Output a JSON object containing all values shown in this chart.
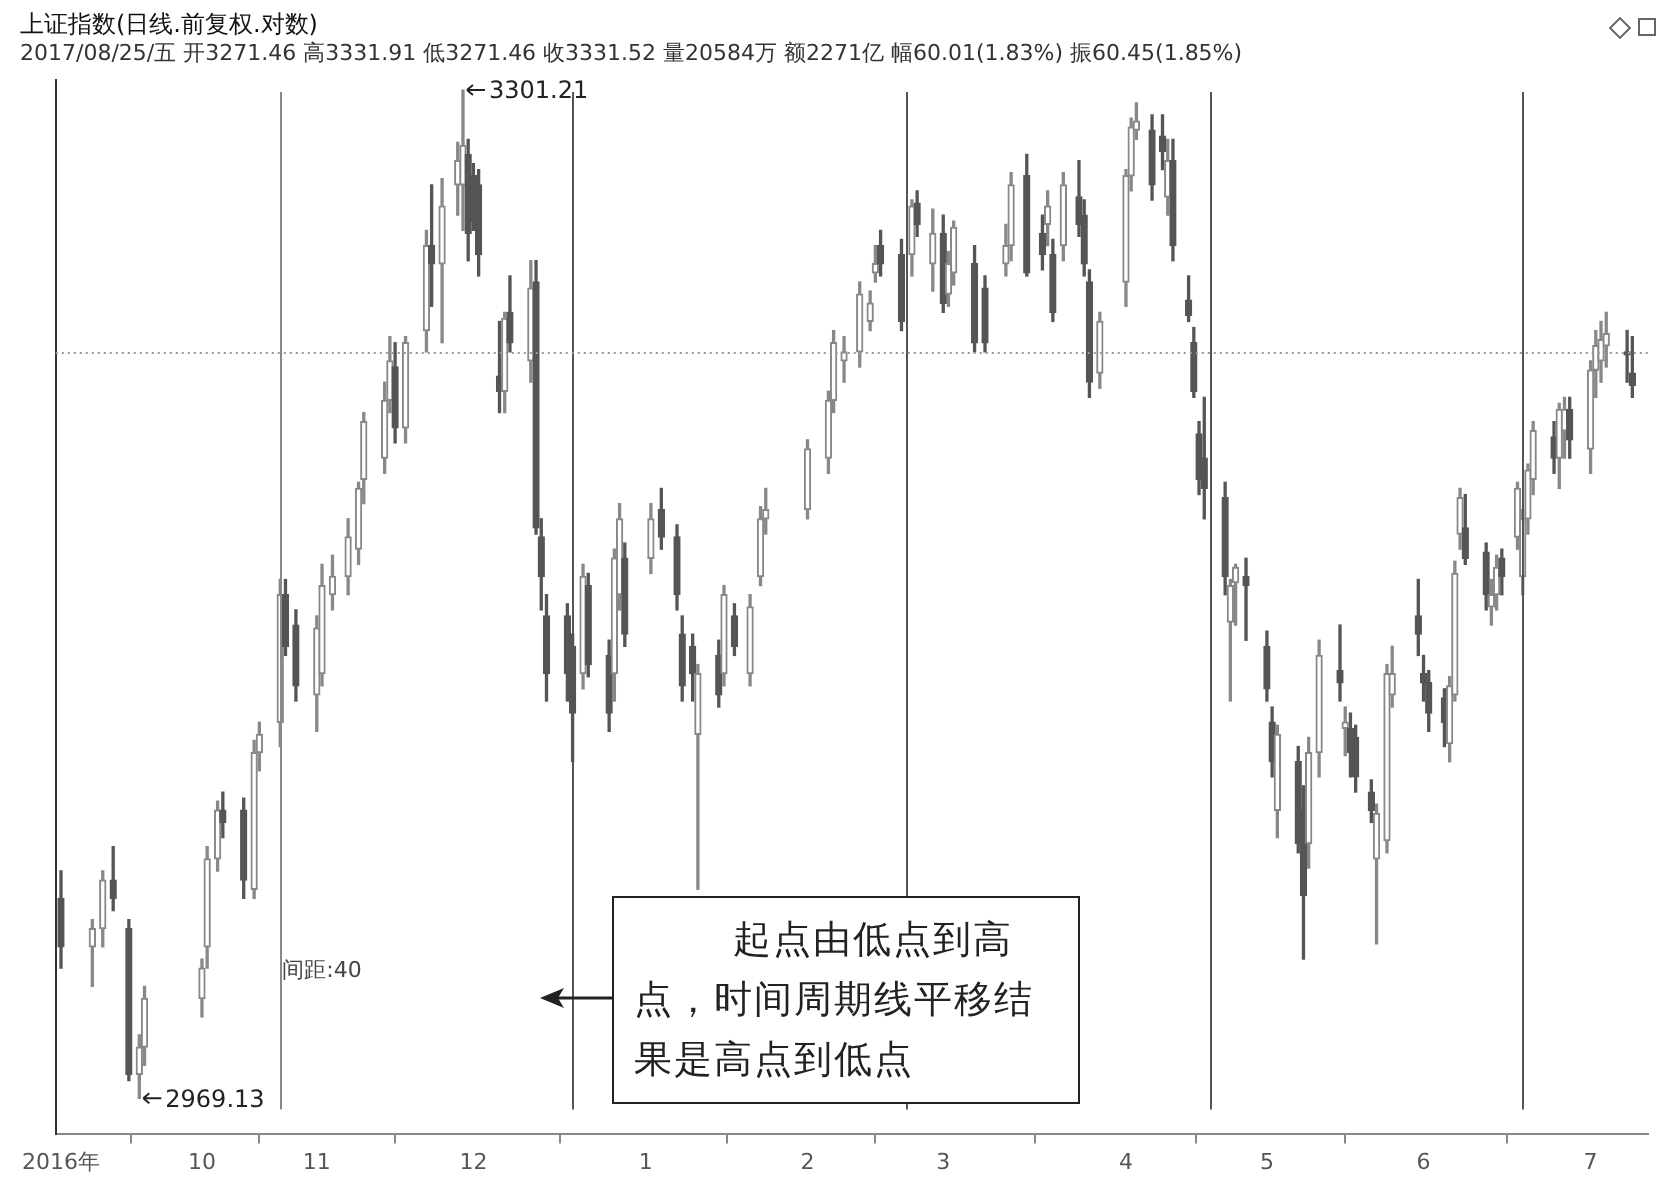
{
  "chart_data": {
    "type": "candlestick",
    "title": "上证指数(日线.前复权.对数)",
    "subtitle": "2017/08/25/五 开3271.46 高3331.91 低3271.46 收3331.52 量20584万 额2271亿 幅60.01(1.83%) 振60.45(1.85%)",
    "colors": [
      "#555555",
      "#888888",
      "#888888",
      "#555555",
      "#555555",
      "#888888",
      "#888888",
      "#888888",
      "#888888",
      "#888888",
      "#555555",
      "#555555",
      "#888888",
      "#888888",
      "#888888",
      "#555555",
      "#555555",
      "#888888",
      "#888888",
      "#888888",
      "#888888",
      "#888888",
      "#888888",
      "#888888",
      "#888888",
      "#555555",
      "#888888",
      "#888888",
      "#555555",
      "#888888",
      "#888888",
      "#888888",
      "#555555",
      "#555555",
      "#555555",
      "#555555",
      "#888888",
      "#555555",
      "#888888",
      "#555555",
      "#555555",
      "#555555",
      "#555555",
      "#555555",
      "#888888",
      "#555555",
      "#555555",
      "#888888",
      "#888888",
      "#555555",
      "#888888",
      "#555555",
      "#555555",
      "#555555",
      "#555555",
      "#888888",
      "#555555",
      "#888888",
      "#555555",
      "#888888",
      "#888888",
      "#888888",
      "#888888",
      "#888888",
      "#888888",
      "#888888",
      "#888888",
      "#888888",
      "#888888",
      "#555555",
      "#555555",
      "#888888",
      "#555555",
      "#888888",
      "#555555",
      "#888888",
      "#888888",
      "#555555",
      "#555555",
      "#888888",
      "#888888",
      "#555555",
      "#555555",
      "#888888",
      "#555555",
      "#888888",
      "#555555",
      "#555555",
      "#555555",
      "#888888",
      "#888888",
      "#888888",
      "#888888",
      "#555555",
      "#555555",
      "#888888",
      "#555555",
      "#555555",
      "#555555",
      "#555555",
      "#555555",
      "#555555",
      "#888888",
      "#888888",
      "#555555",
      "#555555",
      "#555555",
      "#888888",
      "#555555",
      "#555555",
      "#888888",
      "#888888",
      "#555555",
      "#888888",
      "#555555",
      "#555555",
      "#555555",
      "#888888",
      "#888888",
      "#888888",
      "#555555",
      "#555555",
      "#555555",
      "#555555",
      "#888888",
      "#888888",
      "#888888",
      "#555555",
      "#555555",
      "#888888",
      "#888888",
      "#555555",
      "#888888",
      "#888888",
      "#888888",
      "#888888",
      "#555555",
      "#888888",
      "#888888",
      "#555555",
      "#888888",
      "#888888",
      "#888888",
      "#888888",
      "#555555",
      "#555555"
    ],
    "x": [
      "2016-09-13",
      "2016-09-19",
      "2016-09-21",
      "2016-09-23",
      "2016-09-26",
      "2016-09-28",
      "2016-09-29",
      "2016-10-10",
      "2016-10-11",
      "2016-10-13",
      "2016-10-14",
      "2016-10-18",
      "2016-10-20",
      "2016-10-21",
      "2016-10-25",
      "2016-10-26",
      "2016-10-28",
      "2016-11-01",
      "2016-11-02",
      "2016-11-04",
      "2016-11-07",
      "2016-11-09",
      "2016-11-10",
      "2016-11-14",
      "2016-11-15",
      "2016-11-16",
      "2016-11-18",
      "2016-11-22",
      "2016-11-23",
      "2016-11-25",
      "2016-11-28",
      "2016-11-29",
      "2016-11-30",
      "2016-12-01",
      "2016-12-02",
      "2016-12-06",
      "2016-12-07",
      "2016-12-08",
      "2016-12-12",
      "2016-12-13",
      "2016-12-14",
      "2016-12-15",
      "2016-12-19",
      "2016-12-20",
      "2016-12-22",
      "2016-12-23",
      "2016-12-27",
      "2016-12-28",
      "2016-12-29",
      "2016-12-30",
      "2017-01-04",
      "2017-01-06",
      "2017-01-09",
      "2017-01-10",
      "2017-01-12",
      "2017-01-13",
      "2017-01-17",
      "2017-01-18",
      "2017-01-20",
      "2017-01-23",
      "2017-01-25",
      "2017-01-26",
      "2017-02-03",
      "2017-02-07",
      "2017-02-08",
      "2017-02-10",
      "2017-02-13",
      "2017-02-15",
      "2017-02-16",
      "2017-02-17",
      "2017-02-21",
      "2017-02-23",
      "2017-02-24",
      "2017-02-27",
      "2017-03-01",
      "2017-03-02",
      "2017-03-03",
      "2017-03-07",
      "2017-03-09",
      "2017-03-13",
      "2017-03-14",
      "2017-03-17",
      "2017-03-20",
      "2017-03-21",
      "2017-03-22",
      "2017-03-24",
      "2017-03-27",
      "2017-03-28",
      "2017-03-29",
      "2017-03-31",
      "2017-04-05",
      "2017-04-06",
      "2017-04-07",
      "2017-04-10",
      "2017-04-12",
      "2017-04-13",
      "2017-04-14",
      "2017-04-17",
      "2017-04-18",
      "2017-04-19",
      "2017-04-20",
      "2017-04-24",
      "2017-04-25",
      "2017-04-26",
      "2017-04-28",
      "2017-05-02",
      "2017-05-03",
      "2017-05-04",
      "2017-05-08",
      "2017-05-09",
      "2017-05-10",
      "2017-05-12",
      "2017-05-16",
      "2017-05-17",
      "2017-05-18",
      "2017-05-19",
      "2017-05-22",
      "2017-05-23",
      "2017-05-25",
      "2017-05-26",
      "2017-05-31",
      "2017-06-01",
      "2017-06-02",
      "2017-06-05",
      "2017-06-06",
      "2017-06-07",
      "2017-06-08",
      "2017-06-09",
      "2017-06-13",
      "2017-06-14",
      "2017-06-15",
      "2017-06-16",
      "2017-06-19",
      "2017-06-20",
      "2017-06-21",
      "2017-06-22",
      "2017-06-26",
      "2017-06-27",
      "2017-06-28",
      "2017-06-29",
      "2017-07-03",
      "2017-07-04",
      "2017-07-05",
      "2017-07-06",
      "2017-07-10",
      "2017-07-11"
    ],
    "ohlc": [
      [
        3035,
        3044,
        3012,
        3019
      ],
      [
        3019,
        3028,
        3006,
        3025
      ],
      [
        3025,
        3044,
        3019,
        3041
      ],
      [
        3041,
        3052,
        3031,
        3035
      ],
      [
        3025,
        3028,
        2975,
        2977
      ],
      [
        2977,
        2990,
        2969.13,
        2986
      ],
      [
        2986,
        3006,
        2980,
        3002
      ],
      [
        3002,
        3015,
        2996,
        3012
      ],
      [
        3019,
        3052,
        3012,
        3048
      ],
      [
        3048,
        3067,
        3044,
        3064
      ],
      [
        3064,
        3070,
        3055,
        3060
      ],
      [
        3064,
        3068,
        3035,
        3041
      ],
      [
        3038,
        3087,
        3035,
        3083
      ],
      [
        3083,
        3093,
        3077,
        3089
      ],
      [
        3093,
        3140,
        3085,
        3135
      ],
      [
        3135,
        3140,
        3115,
        3118
      ],
      [
        3125,
        3130,
        3100,
        3105
      ],
      [
        3102,
        3128,
        3090,
        3124
      ],
      [
        3109,
        3145,
        3105,
        3138
      ],
      [
        3135,
        3148,
        3130,
        3141
      ],
      [
        3141,
        3160,
        3135,
        3154
      ],
      [
        3150,
        3172,
        3145,
        3170
      ],
      [
        3173,
        3195,
        3165,
        3192
      ],
      [
        3180,
        3205,
        3175,
        3199
      ],
      [
        3199,
        3220,
        3195,
        3212
      ],
      [
        3210,
        3218,
        3185,
        3190
      ],
      [
        3190,
        3220,
        3185,
        3218
      ],
      [
        3222,
        3255,
        3215,
        3250
      ],
      [
        3250,
        3270,
        3230,
        3244
      ],
      [
        3244,
        3272,
        3218,
        3263
      ],
      [
        3270,
        3284,
        3260,
        3278
      ],
      [
        3270,
        3301.21,
        3255,
        3283
      ],
      [
        3280,
        3285,
        3245,
        3254
      ],
      [
        3273,
        3277,
        3255,
        3258
      ],
      [
        3270,
        3275,
        3240,
        3247
      ],
      [
        3207,
        3225,
        3195,
        3202
      ],
      [
        3202,
        3228,
        3195,
        3226
      ],
      [
        3228,
        3240,
        3215,
        3218
      ],
      [
        3212,
        3245,
        3205,
        3236
      ],
      [
        3238,
        3245,
        3155,
        3157
      ],
      [
        3154,
        3160,
        3130,
        3141
      ],
      [
        3128,
        3135,
        3100,
        3109
      ],
      [
        3128,
        3132,
        3100,
        3109
      ],
      [
        3118,
        3122,
        3080,
        3096
      ],
      [
        3109,
        3145,
        3104,
        3141
      ],
      [
        3138,
        3142,
        3108,
        3112
      ],
      [
        3115,
        3120,
        3090,
        3096
      ],
      [
        3109,
        3150,
        3100,
        3147
      ],
      [
        3135,
        3165,
        3130,
        3160
      ],
      [
        3147,
        3152,
        3118,
        3122
      ],
      [
        3147,
        3165,
        3142,
        3160
      ],
      [
        3163,
        3170,
        3150,
        3154
      ],
      [
        3154,
        3158,
        3130,
        3135
      ],
      [
        3122,
        3128,
        3100,
        3105
      ],
      [
        3118,
        3122,
        3100,
        3109
      ],
      [
        3089,
        3112,
        3038,
        3109
      ],
      [
        3115,
        3120,
        3098,
        3102
      ],
      [
        3109,
        3138,
        3105,
        3135
      ],
      [
        3128,
        3132,
        3115,
        3118
      ],
      [
        3109,
        3135,
        3105,
        3131
      ],
      [
        3141,
        3164,
        3138,
        3160
      ],
      [
        3160,
        3170,
        3155,
        3163
      ],
      [
        3163,
        3186,
        3160,
        3183
      ],
      [
        3180,
        3202,
        3175,
        3199
      ],
      [
        3199,
        3222,
        3195,
        3218
      ],
      [
        3212,
        3220,
        3205,
        3215
      ],
      [
        3215,
        3238,
        3210,
        3234
      ],
      [
        3225,
        3235,
        3222,
        3231
      ],
      [
        3241,
        3250,
        3238,
        3244
      ],
      [
        3250,
        3255,
        3240,
        3244
      ],
      [
        3247,
        3252,
        3222,
        3225
      ],
      [
        3247,
        3265,
        3240,
        3263
      ],
      [
        3264,
        3268,
        3253,
        3257
      ],
      [
        3244,
        3262,
        3235,
        3254
      ],
      [
        3254,
        3260,
        3228,
        3231
      ],
      [
        3234,
        3248,
        3230,
        3244
      ],
      [
        3241,
        3258,
        3237,
        3256
      ],
      [
        3244,
        3250,
        3215,
        3218
      ],
      [
        3236,
        3240,
        3215,
        3218
      ],
      [
        3244,
        3257,
        3240,
        3250
      ],
      [
        3250,
        3274,
        3245,
        3270
      ],
      [
        3273,
        3280,
        3240,
        3241
      ],
      [
        3254,
        3260,
        3242,
        3247
      ],
      [
        3257,
        3268,
        3250,
        3263
      ],
      [
        3247,
        3252,
        3225,
        3228
      ],
      [
        3250,
        3274,
        3245,
        3270
      ],
      [
        3266,
        3278,
        3253,
        3257
      ],
      [
        3260,
        3265,
        3240,
        3244
      ],
      [
        3238,
        3242,
        3200,
        3205
      ],
      [
        3208,
        3228,
        3203,
        3225
      ],
      [
        3238,
        3275,
        3230,
        3273
      ],
      [
        3273,
        3292,
        3268,
        3289
      ],
      [
        3288,
        3297,
        3285,
        3291
      ],
      [
        3288,
        3293,
        3265,
        3270
      ],
      [
        3286,
        3293,
        3275,
        3281
      ],
      [
        3266,
        3285,
        3260,
        3278
      ],
      [
        3278,
        3285,
        3245,
        3250
      ],
      [
        3232,
        3240,
        3225,
        3227
      ],
      [
        3218,
        3223,
        3200,
        3202
      ],
      [
        3188,
        3192,
        3168,
        3173
      ],
      [
        3180,
        3200,
        3160,
        3170
      ],
      [
        3167,
        3172,
        3135,
        3141
      ],
      [
        3126,
        3140,
        3100,
        3138
      ],
      [
        3139,
        3145,
        3125,
        3144
      ],
      [
        3141,
        3147,
        3120,
        3138
      ],
      [
        3118,
        3123,
        3100,
        3104
      ],
      [
        3093,
        3098,
        3075,
        3080
      ],
      [
        3064,
        3092,
        3055,
        3089
      ],
      [
        3080,
        3085,
        3050,
        3053
      ],
      [
        3064,
        3072,
        3015,
        3036
      ],
      [
        3053,
        3088,
        3045,
        3083
      ],
      [
        3083,
        3120,
        3075,
        3115
      ],
      [
        3110,
        3125,
        3100,
        3106
      ],
      [
        3091,
        3098,
        3082,
        3093
      ],
      [
        3091,
        3096,
        3075,
        3083
      ],
      [
        3088,
        3092,
        3070,
        3075
      ],
      [
        3070,
        3074,
        3060,
        3064
      ],
      [
        3048,
        3066,
        3020,
        3063
      ],
      [
        3054,
        3112,
        3050,
        3109
      ],
      [
        3102,
        3118,
        3098,
        3109
      ],
      [
        3128,
        3140,
        3115,
        3122
      ],
      [
        3109,
        3115,
        3100,
        3106
      ],
      [
        3106,
        3110,
        3090,
        3096
      ],
      [
        3101,
        3104,
        3085,
        3093
      ],
      [
        3086,
        3108,
        3080,
        3105
      ],
      [
        3102,
        3146,
        3100,
        3142
      ],
      [
        3155,
        3170,
        3150,
        3167
      ],
      [
        3157,
        3168,
        3145,
        3147
      ],
      [
        3149,
        3152,
        3130,
        3135
      ],
      [
        3131,
        3140,
        3125,
        3135
      ],
      [
        3135,
        3148,
        3130,
        3144
      ],
      [
        3147,
        3150,
        3135,
        3141
      ],
      [
        3154,
        3172,
        3150,
        3170
      ],
      [
        3141,
        3163,
        3135,
        3160
      ],
      [
        3160,
        3178,
        3155,
        3176
      ],
      [
        3173,
        3192,
        3168,
        3189
      ],
      [
        3187,
        3192,
        3175,
        3180
      ],
      [
        3180,
        3198,
        3170,
        3196
      ],
      [
        3189,
        3200,
        3180,
        3196
      ],
      [
        3196,
        3200,
        3180,
        3186
      ],
      [
        3183,
        3212,
        3175,
        3209
      ],
      [
        3209,
        3222,
        3200,
        3217
      ],
      [
        3212,
        3225,
        3205,
        3219
      ],
      [
        3217,
        3228,
        3210,
        3221
      ],
      [
        3215,
        3222,
        3205,
        3214
      ],
      [
        3208,
        3220,
        3200,
        3204
      ]
    ],
    "xlim": [
      "2016-09-12",
      "2017-07-14"
    ],
    "xticks": [
      {
        "value": "2016-09-13",
        "label": "2016年"
      },
      {
        "value": "2016-10-10",
        "label": "10"
      },
      {
        "value": "2016-11-01",
        "label": "11"
      },
      {
        "value": "2016-12-01",
        "label": "12"
      },
      {
        "value": "2017-01-03",
        "label": "1"
      },
      {
        "value": "2017-02-03",
        "label": "2"
      },
      {
        "value": "2017-03-01",
        "label": "3"
      },
      {
        "value": "2017-04-05",
        "label": "4"
      },
      {
        "value": "2017-05-02",
        "label": "5"
      },
      {
        "value": "2017-06-01",
        "label": "6"
      },
      {
        "value": "2017-07-03",
        "label": "7"
      }
    ],
    "ref_lines": [
      {
        "axis": "x",
        "value": "2016-10-25",
        "color": "#888888"
      },
      {
        "axis": "x",
        "value": "2016-12-20",
        "color": "#555555"
      },
      {
        "axis": "x",
        "value": "2017-02-22",
        "color": "#555555"
      },
      {
        "axis": "x",
        "value": "2017-04-21",
        "color": "#555555"
      },
      {
        "axis": "x",
        "value": "2017-06-20",
        "color": "#555555"
      },
      {
        "axis": "y",
        "value": 3215,
        "color": "#999999",
        "line_style": "dotted"
      }
    ],
    "annotations": [
      {
        "text": "3301.21",
        "x": "2016-11-29",
        "y": 3301.21
      },
      {
        "text": "2969.13",
        "x": "2016-09-28",
        "y": 2969.13
      },
      {
        "text": "间距:40",
        "x": "2016-10-25",
        "y": 3011
      },
      "起点由低点到高点，时间周期线平移结果是高点到低点"
    ],
    "grid": false,
    "legend": false
  }
}
